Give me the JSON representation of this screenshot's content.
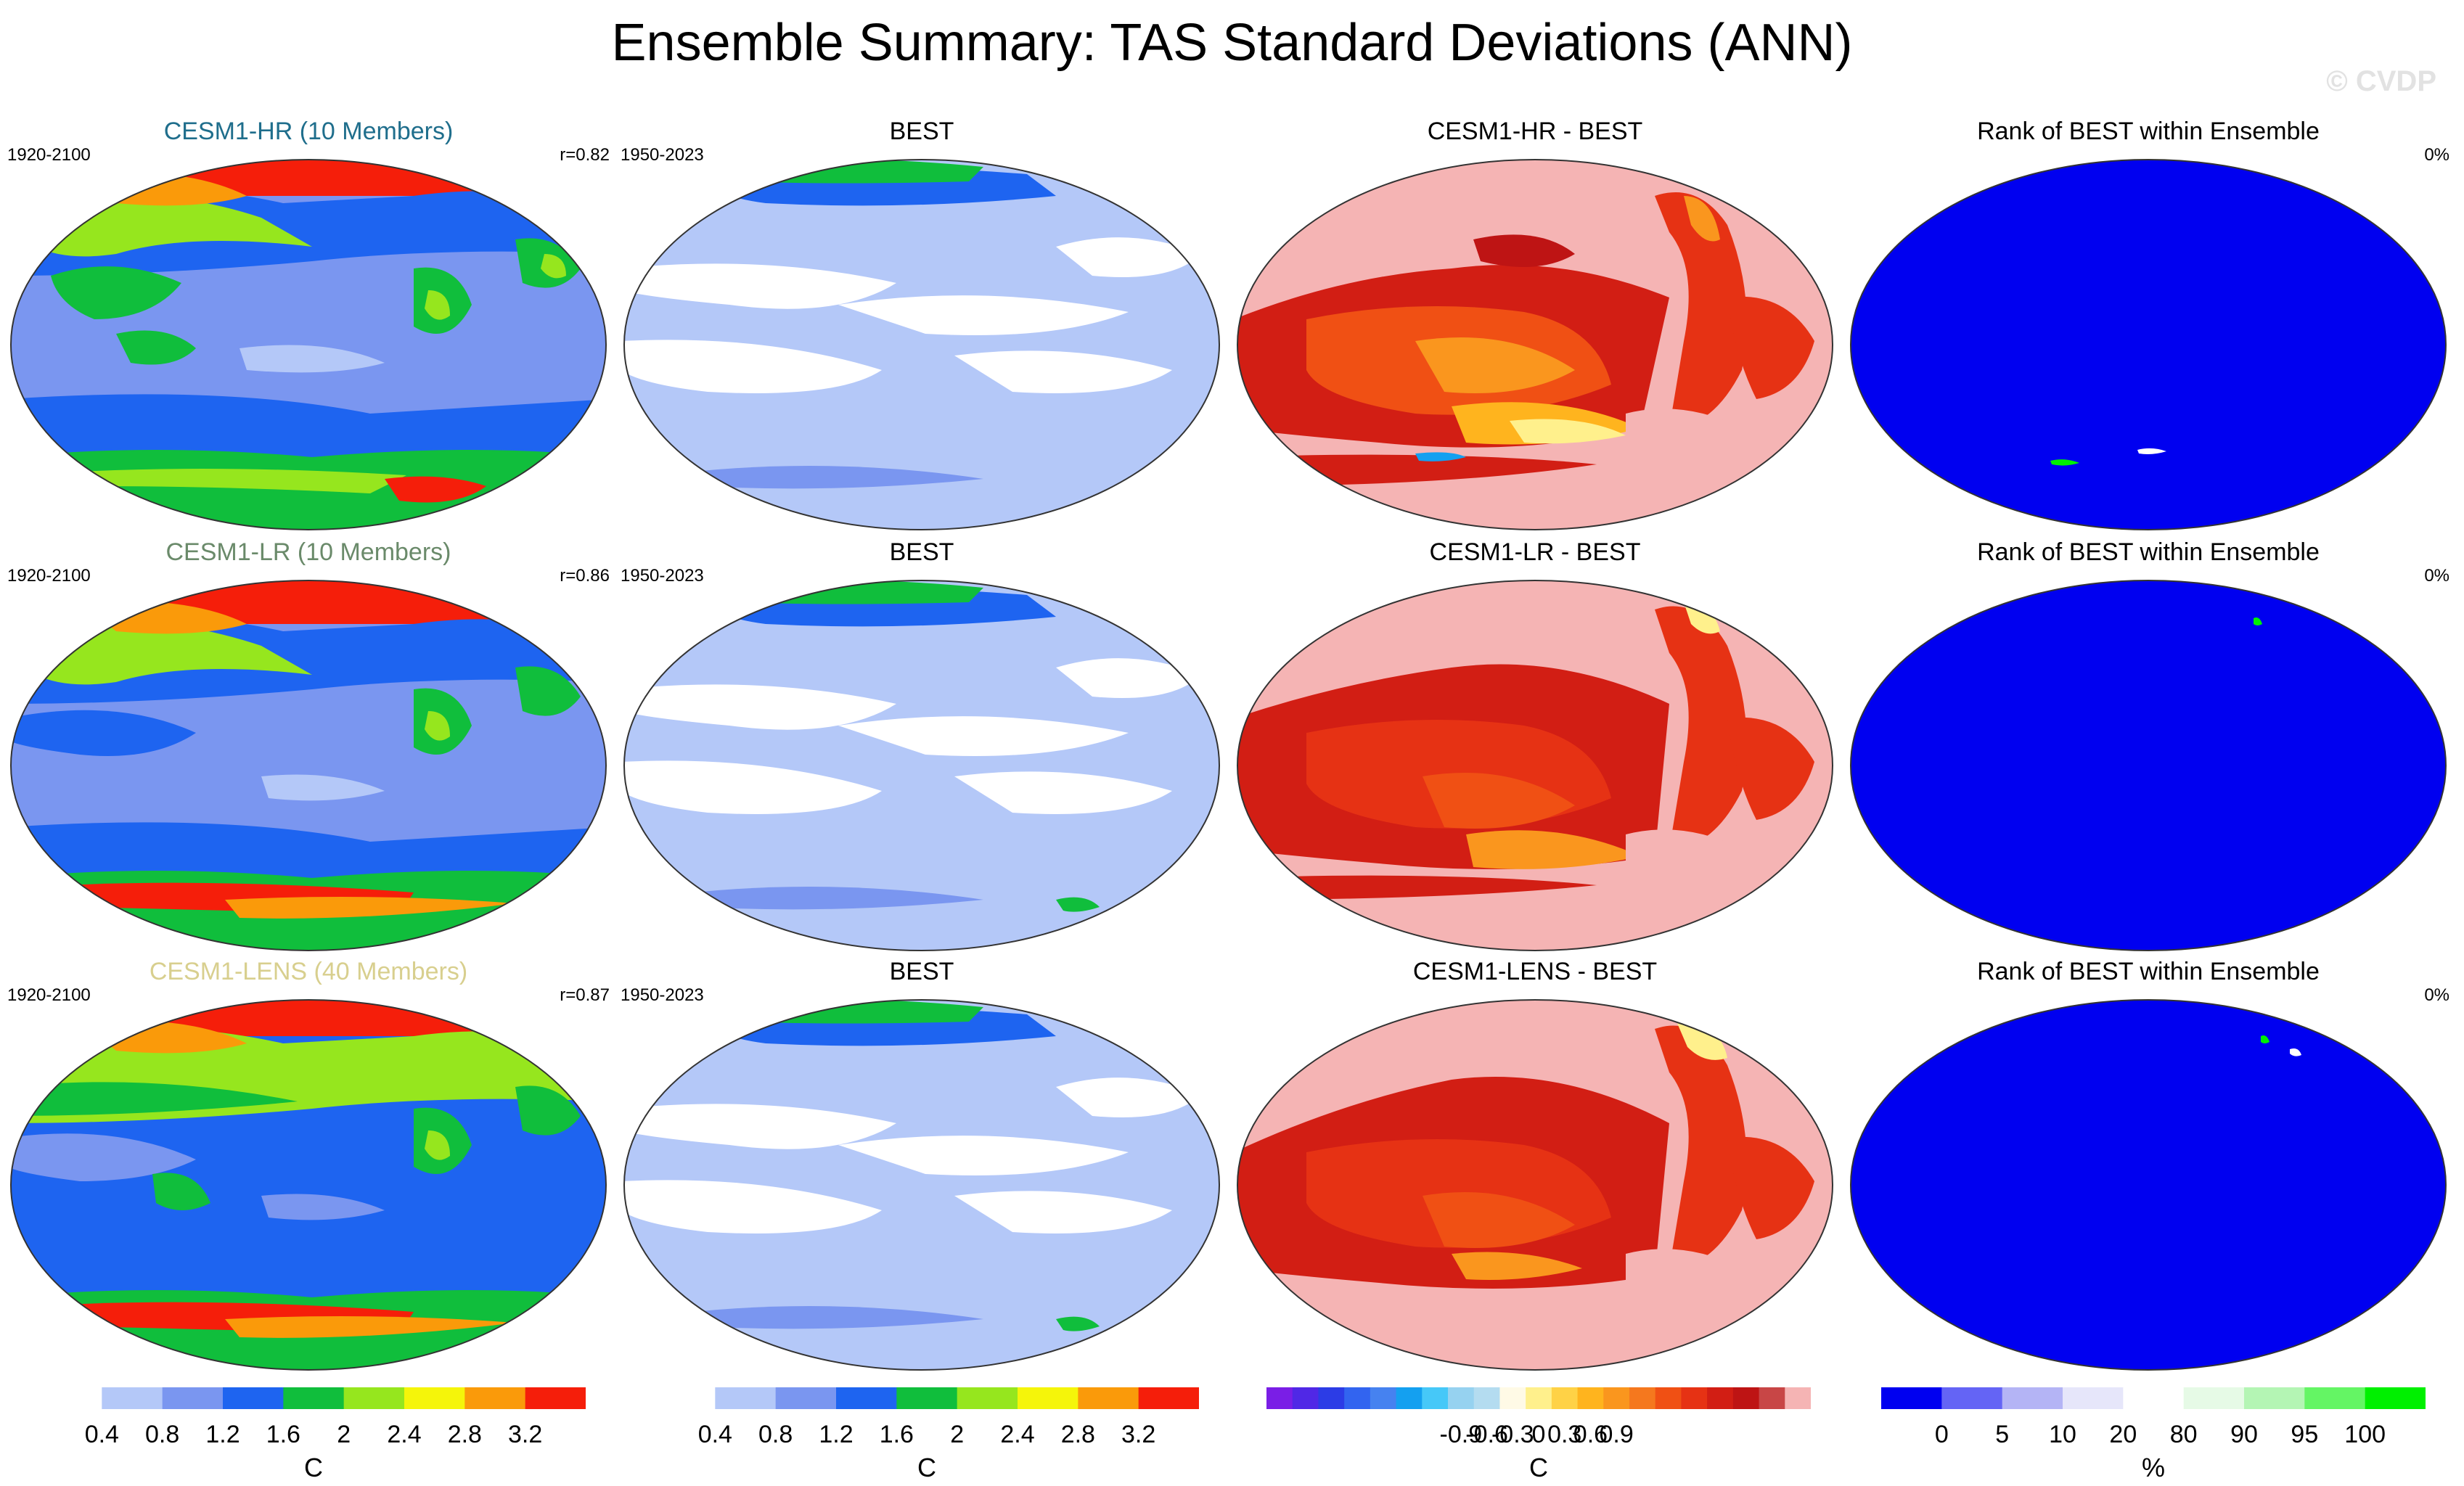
{
  "title": "Ensemble Summary: TAS Standard Deviations (ANN)",
  "watermark": "© CVDP",
  "rows": [
    {
      "ensemble": {
        "title": "CESM1-HR (10 Members)",
        "period": "1920-2100",
        "corr": "r=0.82"
      },
      "obs": {
        "title": "BEST",
        "period": "1950-2023"
      },
      "diff": {
        "title": "CESM1-HR - BEST"
      },
      "rank": {
        "title": "Rank of BEST within Ensemble",
        "percent": "0%"
      }
    },
    {
      "ensemble": {
        "title": "CESM1-LR (10 Members)",
        "period": "1920-2100",
        "corr": "r=0.86"
      },
      "obs": {
        "title": "BEST",
        "period": "1950-2023"
      },
      "diff": {
        "title": "CESM1-LR - BEST"
      },
      "rank": {
        "title": "Rank of BEST within Ensemble",
        "percent": "0%"
      }
    },
    {
      "ensemble": {
        "title": "CESM1-LENS (40 Members)",
        "period": "1920-2100",
        "corr": "r=0.87"
      },
      "obs": {
        "title": "BEST",
        "period": "1950-2023"
      },
      "diff": {
        "title": "CESM1-LENS - BEST"
      },
      "rank": {
        "title": "Rank of BEST within Ensemble",
        "percent": "0%"
      }
    }
  ],
  "colorbars": {
    "stddev": {
      "labels": [
        "0.4",
        "0.8",
        "1.2",
        "1.6",
        "2",
        "2.4",
        "2.8",
        "3.2"
      ],
      "unit": "C",
      "colors": [
        "#ffffff",
        "#b4c8f8",
        "#7a96f0",
        "#1e64f0",
        "#10be3c",
        "#96e61e",
        "#f5f50a",
        "#fa9a0a",
        "#f51e0a"
      ]
    },
    "diff": {
      "labels": [
        "-0.9",
        "-0.6",
        "-0.3",
        "0",
        "0.3",
        "0.6",
        "0.9"
      ],
      "unit": "C",
      "colors": [
        "#7a1ee6",
        "#5028e6",
        "#2c3ce6",
        "#3264f0",
        "#4682f0",
        "#14a0f0",
        "#46c8f8",
        "#96d2f0",
        "#b4dcf0",
        "#fffae6",
        "#fff08c",
        "#ffd246",
        "#ffb41e",
        "#fa961e",
        "#f5781e",
        "#f05014",
        "#e63214",
        "#d21e14",
        "#be1414",
        "#c84646",
        "#f5b4b4"
      ]
    },
    "rank": {
      "labels": [
        "0",
        "5",
        "10",
        "20",
        "80",
        "90",
        "95",
        "100"
      ],
      "unit": "%",
      "colors": [
        "#0000f0",
        "#6464f5",
        "#b4b4f5",
        "#e6e6fa",
        "#ffffff",
        "#e6fae6",
        "#b4f5b4",
        "#64f564",
        "#00f000"
      ]
    }
  }
}
